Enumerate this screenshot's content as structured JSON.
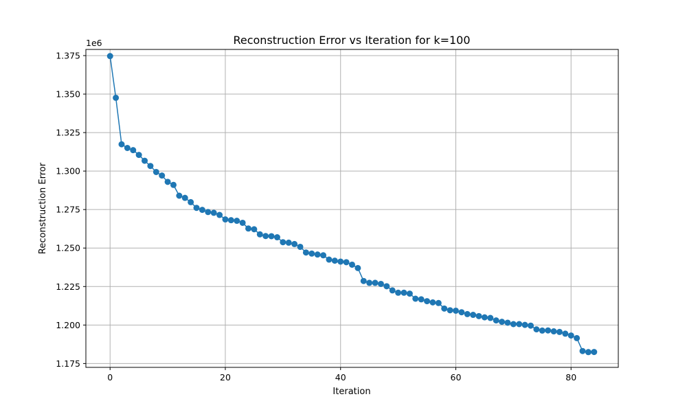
{
  "chart_data": {
    "type": "line",
    "title": "Reconstruction Error vs Iteration for k=100",
    "xlabel": "Iteration",
    "ylabel": "Reconstruction Error",
    "y_offset_label": "1e6",
    "xlim": [
      -4.2,
      88.2
    ],
    "ylim": [
      1172500,
      1379000
    ],
    "xticks": [
      0,
      20,
      40,
      60,
      80
    ],
    "yticks": [
      1175000,
      1200000,
      1225000,
      1250000,
      1275000,
      1300000,
      1325000,
      1350000,
      1375000
    ],
    "ytick_labels": [
      "1.175",
      "1.200",
      "1.225",
      "1.250",
      "1.275",
      "1.300",
      "1.325",
      "1.350",
      "1.375"
    ],
    "grid": true,
    "marker": "circle",
    "series": [
      {
        "color": "#1f77b4",
        "x": [
          0,
          1,
          2,
          3,
          4,
          5,
          6,
          7,
          8,
          9,
          10,
          11,
          12,
          13,
          14,
          15,
          16,
          17,
          18,
          19,
          20,
          21,
          22,
          23,
          24,
          25,
          26,
          27,
          28,
          29,
          30,
          31,
          32,
          33,
          34,
          35,
          36,
          37,
          38,
          39,
          40,
          41,
          42,
          43,
          44,
          45,
          46,
          47,
          48,
          49,
          50,
          51,
          52,
          53,
          54,
          55,
          56,
          57,
          58,
          59,
          60,
          61,
          62,
          63,
          64,
          65,
          66,
          67,
          68,
          69,
          70,
          71,
          72,
          73,
          74,
          75,
          76,
          77,
          78,
          79,
          80,
          81,
          82,
          83,
          84
        ],
        "y": [
          1374700,
          1347600,
          1317400,
          1315000,
          1313600,
          1310500,
          1306700,
          1303300,
          1299400,
          1297100,
          1293000,
          1291000,
          1284000,
          1282600,
          1279800,
          1276100,
          1274800,
          1273400,
          1272900,
          1271500,
          1268600,
          1268100,
          1267700,
          1266400,
          1262700,
          1262200,
          1258900,
          1257800,
          1257700,
          1257000,
          1253800,
          1253500,
          1252600,
          1250800,
          1247100,
          1246400,
          1245800,
          1245300,
          1242500,
          1241800,
          1241200,
          1240800,
          1239200,
          1237000,
          1228600,
          1227400,
          1227400,
          1226700,
          1225200,
          1222500,
          1221000,
          1221000,
          1220400,
          1217100,
          1216700,
          1215500,
          1214700,
          1214300,
          1210700,
          1209600,
          1209300,
          1208300,
          1207100,
          1206600,
          1205800,
          1205000,
          1204600,
          1203000,
          1202100,
          1201500,
          1200600,
          1200600,
          1200100,
          1199600,
          1197200,
          1196400,
          1196500,
          1195900,
          1195500,
          1194400,
          1193200,
          1191500,
          1183100,
          1182400,
          1182500
        ]
      }
    ]
  }
}
